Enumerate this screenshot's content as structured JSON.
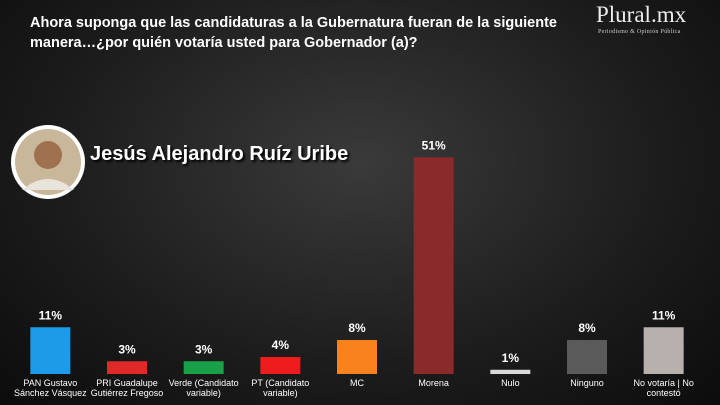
{
  "header": {
    "title": "Ahora suponga que las candidaturas a la Gubernatura fueran de la siguiente manera…¿por quién votaría usted para Gobernador (a)?",
    "logo": "Plural.mx",
    "logo_tagline": "Periodismo & Opinión Pública"
  },
  "candidate": {
    "name": "Jesús Alejandro Ruíz Uribe"
  },
  "chart_data": {
    "type": "bar",
    "categories": [
      "PAN Gustavo Sánchez Vásquez",
      "PRI Guadalupe Gutiérrez Fregoso",
      "Verde (Candidato variable)",
      "PT (Candidato variable)",
      "MC",
      "Morena",
      "Nulo",
      "Ninguno",
      "No votaría | No contestó"
    ],
    "values": [
      11,
      3,
      3,
      4,
      8,
      51,
      1,
      8,
      11
    ],
    "value_labels": [
      "11%",
      "3%",
      "3%",
      "4%",
      "8%",
      "51%",
      "1%",
      "8%",
      "11%"
    ],
    "colors": [
      "#1e9be8",
      "#e02a2a",
      "#1aa049",
      "#ee1c1c",
      "#f7821e",
      "#8b2a2a",
      "#d9d9d9",
      "#5a5a5a",
      "#b8b0ac"
    ],
    "ylim": [
      0,
      60
    ]
  }
}
